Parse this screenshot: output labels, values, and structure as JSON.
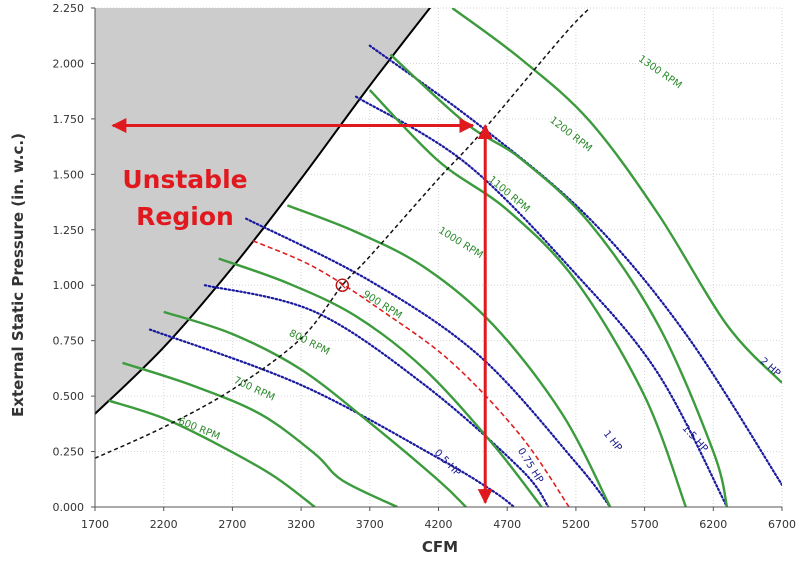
{
  "chart_data": {
    "type": "line",
    "xlabel": "CFM",
    "ylabel": "External Static Pressure (in. w.c.)",
    "xlim": [
      1700,
      6700
    ],
    "ylim": [
      0,
      2.25
    ],
    "x_ticks": [
      "1700",
      "2200",
      "2700",
      "3200",
      "3700",
      "4200",
      "4700",
      "5200",
      "5700",
      "6200",
      "6700"
    ],
    "y_ticks": [
      "0.000",
      "0.250",
      "0.500",
      "0.750",
      "1.000",
      "1.250",
      "1.500",
      "1.750",
      "2.000",
      "2.250"
    ],
    "grid": true,
    "unstable_region": {
      "label": [
        "Unstable",
        "Region"
      ],
      "fill": "#cccccc",
      "boundary": [
        [
          1700,
          0.42
        ],
        [
          2200,
          0.72
        ],
        [
          2700,
          1.08
        ],
        [
          3200,
          1.48
        ],
        [
          3700,
          1.9
        ],
        [
          4200,
          2.3
        ]
      ]
    },
    "system_curve": {
      "color": "#000000",
      "points": [
        [
          1700,
          0.22
        ],
        [
          2200,
          0.36
        ],
        [
          2700,
          0.53
        ],
        [
          3200,
          0.76
        ],
        [
          3500,
          1.0
        ],
        [
          3700,
          1.13
        ],
        [
          4200,
          1.48
        ],
        [
          4500,
          1.68
        ],
        [
          5100,
          2.12
        ],
        [
          5300,
          2.25
        ]
      ]
    },
    "rpm_curves": [
      {
        "name": "600 RPM",
        "points": [
          [
            1800,
            0.48
          ],
          [
            2200,
            0.4
          ],
          [
            2600,
            0.28
          ],
          [
            3000,
            0.14
          ],
          [
            3300,
            0.0
          ]
        ]
      },
      {
        "name": "700 RPM",
        "points": [
          [
            1900,
            0.65
          ],
          [
            2400,
            0.55
          ],
          [
            2900,
            0.42
          ],
          [
            3300,
            0.24
          ],
          [
            3500,
            0.12
          ],
          [
            3900,
            0.0
          ]
        ]
      },
      {
        "name": "800 RPM",
        "points": [
          [
            2200,
            0.88
          ],
          [
            2700,
            0.78
          ],
          [
            3200,
            0.62
          ],
          [
            3700,
            0.38
          ],
          [
            4200,
            0.12
          ],
          [
            4400,
            0.0
          ]
        ]
      },
      {
        "name": "900 RPM",
        "points": [
          [
            2600,
            1.12
          ],
          [
            3100,
            1.01
          ],
          [
            3600,
            0.86
          ],
          [
            4100,
            0.62
          ],
          [
            4600,
            0.28
          ],
          [
            4950,
            0.0
          ]
        ]
      },
      {
        "name": "1000 RPM",
        "points": [
          [
            3100,
            1.36
          ],
          [
            3600,
            1.24
          ],
          [
            4100,
            1.08
          ],
          [
            4600,
            0.82
          ],
          [
            5100,
            0.42
          ],
          [
            5450,
            0.0
          ]
        ]
      },
      {
        "name": "1100 RPM",
        "points": [
          [
            3700,
            1.88
          ],
          [
            4200,
            1.56
          ],
          [
            4700,
            1.34
          ],
          [
            5200,
            1.02
          ],
          [
            5700,
            0.5
          ],
          [
            6000,
            0.0
          ]
        ]
      },
      {
        "name": "1200 RPM",
        "points": [
          [
            3850,
            2.04
          ],
          [
            4400,
            1.73
          ],
          [
            4800,
            1.57
          ],
          [
            5300,
            1.28
          ],
          [
            5800,
            0.82
          ],
          [
            6200,
            0.25
          ],
          [
            6300,
            0.0
          ]
        ]
      },
      {
        "name": "1300 RPM",
        "points": [
          [
            4300,
            2.25
          ],
          [
            4800,
            2.02
          ],
          [
            5300,
            1.74
          ],
          [
            5800,
            1.32
          ],
          [
            6300,
            0.82
          ],
          [
            6700,
            0.56
          ]
        ]
      }
    ],
    "hp_curves": [
      {
        "name": "0.5 HP",
        "points": [
          [
            2100,
            0.8
          ],
          [
            3200,
            0.55
          ],
          [
            4200,
            0.22
          ],
          [
            4600,
            0.07
          ],
          [
            4750,
            0.0
          ]
        ]
      },
      {
        "name": "0.75 HP",
        "points": [
          [
            2500,
            1.0
          ],
          [
            3300,
            0.88
          ],
          [
            4100,
            0.55
          ],
          [
            4800,
            0.17
          ],
          [
            5000,
            0.0
          ]
        ]
      },
      {
        "name": "1 HP",
        "points": [
          [
            2800,
            1.3
          ],
          [
            3700,
            1.02
          ],
          [
            4500,
            0.68
          ],
          [
            5200,
            0.2
          ],
          [
            5450,
            0.0
          ]
        ]
      },
      {
        "name": "1.5 HP",
        "points": [
          [
            3600,
            1.85
          ],
          [
            4400,
            1.55
          ],
          [
            5200,
            1.05
          ],
          [
            5800,
            0.6
          ],
          [
            6300,
            0.0
          ]
        ]
      },
      {
        "name": "2 HP",
        "points": [
          [
            3700,
            2.08
          ],
          [
            4500,
            1.72
          ],
          [
            5300,
            1.3
          ],
          [
            6000,
            0.78
          ],
          [
            6700,
            0.1
          ]
        ]
      }
    ],
    "dashed_red_curve": {
      "points": [
        [
          2850,
          1.2
        ],
        [
          3300,
          1.08
        ],
        [
          3800,
          0.88
        ],
        [
          4300,
          0.65
        ],
        [
          4800,
          0.32
        ],
        [
          5150,
          0.0
        ]
      ]
    },
    "operating_point": {
      "x": 3500,
      "y": 1.0
    },
    "arrows": [
      {
        "from": [
          4500,
          1.72
        ],
        "to": [
          1830,
          1.72
        ]
      },
      {
        "from": [
          1830,
          1.72
        ],
        "to": [
          4450,
          1.72
        ]
      },
      {
        "from": [
          4540,
          0.02
        ],
        "to": [
          4540,
          1.72
        ]
      },
      {
        "from": [
          4540,
          1.72
        ],
        "to": [
          4540,
          0.02
        ]
      }
    ],
    "rpm_label_anchors": [
      {
        "name": "600 RPM",
        "at": [
          2450,
          0.34
        ],
        "angle": 22
      },
      {
        "name": "700 RPM",
        "at": [
          2850,
          0.52
        ],
        "angle": 25
      },
      {
        "name": "800 RPM",
        "at": [
          3250,
          0.73
        ],
        "angle": 27
      },
      {
        "name": "900 RPM",
        "at": [
          3780,
          0.9
        ],
        "angle": 32
      },
      {
        "name": "1000 RPM",
        "at": [
          4350,
          1.18
        ],
        "angle": 32
      },
      {
        "name": "1100 RPM",
        "at": [
          4700,
          1.4
        ],
        "angle": 40
      },
      {
        "name": "1200 RPM",
        "at": [
          5150,
          1.67
        ],
        "angle": 38
      },
      {
        "name": "1300 RPM",
        "at": [
          5800,
          1.95
        ],
        "angle": 35
      }
    ],
    "hp_label_anchors": [
      {
        "name": "0.5 HP",
        "at": [
          4250,
          0.19
        ],
        "angle": 46
      },
      {
        "name": "0.75 HP",
        "at": [
          4850,
          0.18
        ],
        "angle": 58
      },
      {
        "name": "1 HP",
        "at": [
          5450,
          0.29
        ],
        "angle": 52
      },
      {
        "name": "1.5 HP",
        "at": [
          6050,
          0.3
        ],
        "angle": 48
      },
      {
        "name": "2 HP",
        "at": [
          6600,
          0.62
        ],
        "angle": 42
      }
    ],
    "colors": {
      "rpm": "#3c9b3c",
      "hp": "#1a1aa0",
      "system": "#111111",
      "arrow": "#e0191f",
      "dashed_red": "#e02020",
      "grid": "#d6d6d6"
    }
  }
}
